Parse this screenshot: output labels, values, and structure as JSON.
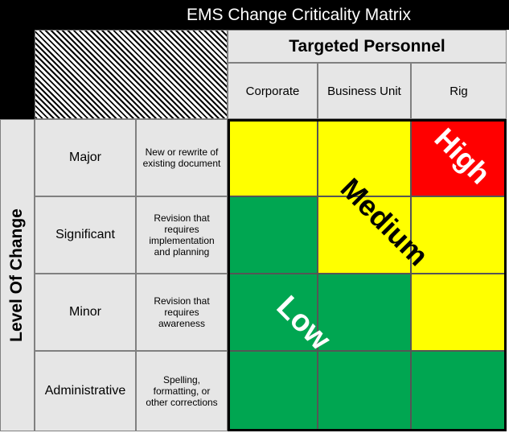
{
  "title": "EMS Change Criticality Matrix",
  "targeted_personnel": {
    "label": "Targeted Personnel",
    "columns": [
      "Corporate",
      "Business Unit",
      "Rig"
    ]
  },
  "level_of_change": {
    "label": "Level Of Change",
    "rows": [
      {
        "name": "Major",
        "description": "New or rewrite of existing document"
      },
      {
        "name": "Significant",
        "description": "Revision that requires implementation and planning"
      },
      {
        "name": "Minor",
        "description": "Revision that requires awareness"
      },
      {
        "name": "Administrative",
        "description": "Spelling, formatting, or other corrections"
      }
    ]
  },
  "matrix": [
    [
      "yellow",
      "yellow",
      "red"
    ],
    [
      "green",
      "yellow",
      "yellow"
    ],
    [
      "green",
      "green",
      "yellow"
    ],
    [
      "green",
      "green",
      "green"
    ]
  ],
  "zones": {
    "high": "High",
    "medium": "Medium",
    "low": "Low"
  },
  "colors": {
    "yellow": "#ffff00",
    "green": "#00a651",
    "red": "#ff0000",
    "header_gray": "#e6e6e6"
  }
}
